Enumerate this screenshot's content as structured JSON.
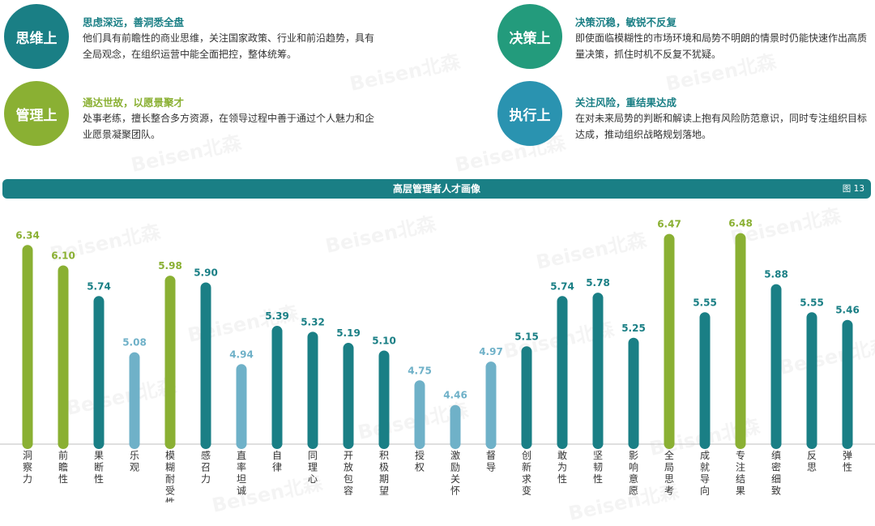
{
  "cards": [
    {
      "label": "思维上",
      "title": "思虑深远，善洞悉全盘",
      "desc": "他们具有前瞻性的商业思维，关注国家政策、行业和前沿趋势，具有全局观念，在组织运营中能全面把控，整体统筹。",
      "color": "#1a7f85"
    },
    {
      "label": "决策上",
      "title": "决策沉稳，敏锐不反复",
      "desc": "即使面临模糊性的市场环境和局势不明朗的情景时仍能快速作出高质量决策，抓住时机不反复不犹疑。",
      "color": "#239b7c"
    },
    {
      "label": "管理上",
      "title": "通达世故，以愿景聚才",
      "desc": "处事老练，擅长整合多方资源，在领导过程中善于通过个人魅力和企业愿景凝聚团队。",
      "color": "#8ab033"
    },
    {
      "label": "执行上",
      "title": "关注风险，重结果达成",
      "desc": "在对未来局势的判断和解读上抱有风险防范意识，同时专注组织目标达成，推动组织战略规划落地。",
      "color": "#2a93b0"
    }
  ],
  "banner": {
    "title": "高层管理者人才画像",
    "figure": "图 13"
  },
  "watermark": "Beisen北森",
  "chart_data": {
    "type": "bar",
    "categories": [
      "洞察力",
      "前瞻性",
      "果断性",
      "乐观",
      "模糊耐受性",
      "感召力",
      "直率坦诚",
      "自律",
      "同理心",
      "开放包容",
      "积极期望",
      "授权",
      "激励关怀",
      "督导",
      "创新求变",
      "敢为性",
      "坚韧性",
      "影响意愿",
      "全局思考",
      "成就导向",
      "专注结果",
      "缜密细致",
      "反思",
      "弹性"
    ],
    "values": [
      6.34,
      6.1,
      5.74,
      5.08,
      5.98,
      5.9,
      4.94,
      5.39,
      5.32,
      5.19,
      5.1,
      4.75,
      4.46,
      4.97,
      5.15,
      5.74,
      5.78,
      5.25,
      6.47,
      5.55,
      6.48,
      5.88,
      5.55,
      5.46
    ],
    "value_labels": [
      "6.34",
      "6.10",
      "5.74",
      "5.08",
      "5.98",
      "5.90",
      "4.94",
      "5.39",
      "5.32",
      "5.19",
      "5.10",
      "4.75",
      "4.46",
      "4.97",
      "5.15",
      "5.74",
      "5.78",
      "5.25",
      "6.47",
      "5.55",
      "6.48",
      "5.88",
      "5.55",
      "5.46"
    ],
    "color_groups": [
      "high",
      "high",
      "mid",
      "low",
      "high",
      "mid",
      "low",
      "mid",
      "mid",
      "mid",
      "mid",
      "low",
      "low",
      "low",
      "mid",
      "mid",
      "mid",
      "mid",
      "high",
      "mid",
      "high",
      "mid",
      "mid",
      "mid"
    ],
    "colors": {
      "high": "#8ab033",
      "mid": "#1a7f85",
      "low": "#6fb1c8"
    },
    "label_colors": {
      "high": "#8ab033",
      "mid": "#1a7f85",
      "low": "#6fb1c8"
    },
    "ylim": [
      4.0,
      6.6
    ],
    "grid": false,
    "legend": "none"
  }
}
